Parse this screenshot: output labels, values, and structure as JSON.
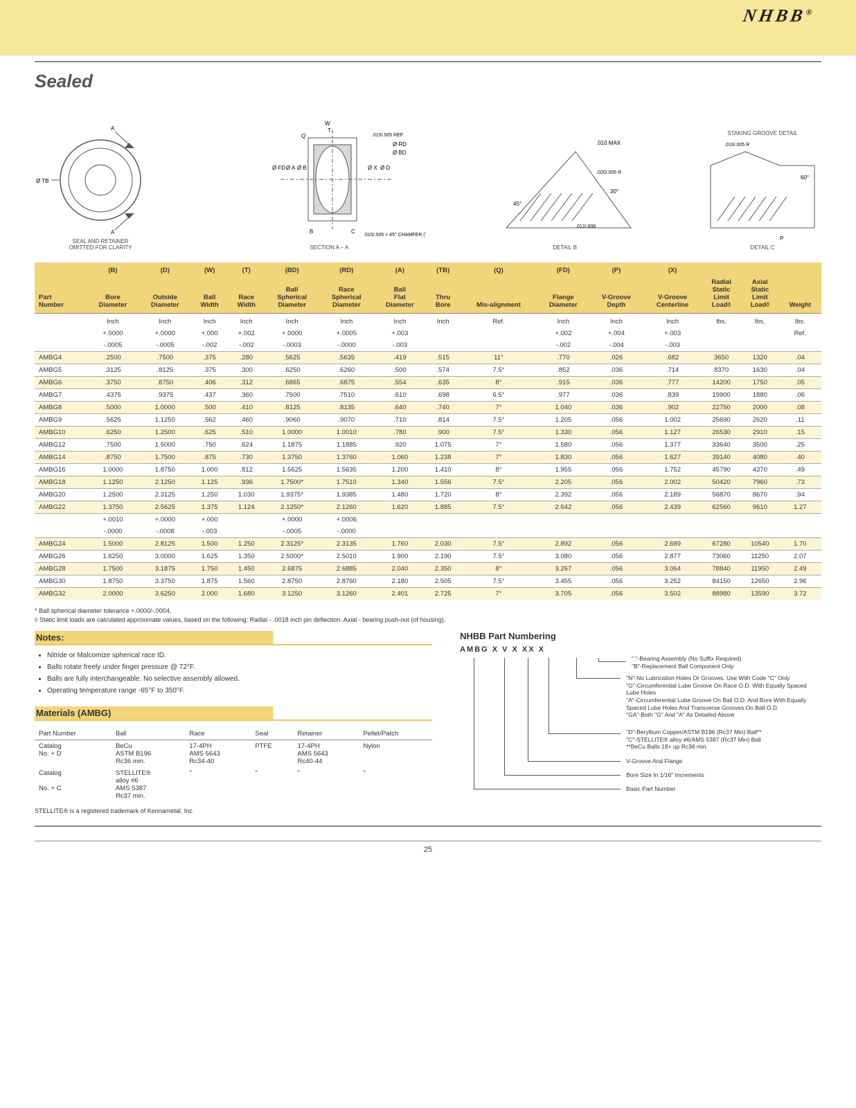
{
  "brand": "NHBB",
  "page_title": "Sealed",
  "page_number": "25",
  "diagrams": {
    "d1_label": "SEAL AND RETAINER\nOMITTED FOR CLARITY",
    "d1_anno": [
      "Ø TB",
      "A",
      "A"
    ],
    "d2_label": "SECTION A – A",
    "d2_anno": [
      "Ø FD",
      "Ø A",
      "Ø B",
      "W",
      "T",
      "Q",
      "C",
      "B",
      "C",
      "Ø X",
      "Ø D",
      ".015/.005 REF",
      ".015/.005 × 45° CHAMFER (TYP.)",
      "Ø RD",
      "Ø BD"
    ],
    "d3_label": "DETAIL B",
    "d3_anno": [
      ".010 MAX",
      "45°",
      "30°",
      ".020/.005 R",
      ".012/.008"
    ],
    "d4_label": "DETAIL C",
    "d4_title": "STAKING GROOVE DETAIL",
    "d4_anno": [
      ".010/.005 R",
      "60°",
      "P"
    ]
  },
  "table": {
    "header_codes": [
      "",
      "(B)",
      "(D)",
      "(W)",
      "(T)",
      "(BD)",
      "(RD)",
      "(A)",
      "(TB)",
      "(Q)",
      "(FD)",
      "(P)",
      "(X)",
      "",
      "",
      ""
    ],
    "header_names": [
      "Part Number",
      "Bore Diameter",
      "Outside Diameter",
      "Ball Width",
      "Race Width",
      "Ball Spherical Diameter",
      "Race Spherical Diameter",
      "Ball Flat Diameter",
      "Thru Bore",
      "Mis-alignment",
      "Flange Diameter",
      "V-Groove Depth",
      "V-Groove Centerline",
      "Radial Static Limit Load◊",
      "Axial Static Limit Load◊",
      "Weight"
    ],
    "unit_row": [
      "",
      "Inch",
      "Inch",
      "Inch",
      "Inch",
      "Inch",
      "Inch",
      "Inch",
      "Inch",
      "Ref.",
      "Inch",
      "Inch",
      "Inch",
      "lbs.",
      "lbs.",
      "lbs."
    ],
    "tol_row1": [
      "",
      "+.0000",
      "+.0000",
      "+.000",
      "+.002",
      "+.0000",
      "+.0005",
      "+.003",
      "",
      "",
      "+.002",
      "+.004",
      "+.003",
      "",
      "",
      "Ref."
    ],
    "tol_row2": [
      "",
      "-.0005",
      "-.0005",
      "-.002",
      "-.002",
      "-.0003",
      "-.0000",
      "-.003",
      "",
      "",
      "-.002",
      "-.004",
      "-.003",
      "",
      "",
      ""
    ],
    "rows": [
      [
        "AMBG4",
        ".2500",
        ".7500",
        ".375",
        ".280",
        ".5625",
        ".5635",
        ".419",
        ".515",
        "11°",
        ".770",
        ".026",
        ".682",
        "3650",
        "1320",
        ".04"
      ],
      [
        "AMBG5",
        ".3125",
        ".8125",
        ".375",
        ".300",
        ".6250",
        ".6260",
        ".500",
        ".574",
        "7.5°",
        ".852",
        ".036",
        ".714",
        "8370",
        "1630",
        ".04"
      ],
      [
        "AMBG6",
        ".3750",
        ".8750",
        ".406",
        ".312",
        ".6865",
        ".6875",
        ".554",
        ".635",
        "8°",
        ".915",
        ".036",
        ".777",
        "14200",
        "1750",
        ".05"
      ],
      [
        "AMBG7",
        ".4375",
        ".9375",
        ".437",
        ".360",
        ".7500",
        ".7510",
        ".610",
        ".698",
        "6.5°",
        ".977",
        ".036",
        ".839",
        "19900",
        "1880",
        ".06"
      ],
      [
        "AMBG8",
        ".5000",
        "1.0000",
        ".500",
        ".410",
        ".8125",
        ".8135",
        ".640",
        ".740",
        "7°",
        "1.040",
        ".036",
        ".902",
        "22750",
        "2000",
        ".08"
      ],
      [
        "AMBG9",
        ".5625",
        "1.1250",
        ".562",
        ".460",
        ".9060",
        ".9070",
        ".710",
        ".814",
        "7.5°",
        "1.205",
        ".056",
        "1.002",
        "25690",
        "2620",
        ".11"
      ],
      [
        "AMBG10",
        ".6250",
        "1.2500",
        ".625",
        ".510",
        "1.0000",
        "1.0010",
        ".780",
        ".900",
        "7.5°",
        "1.330",
        ".056",
        "1.127",
        "26530",
        "2910",
        ".15"
      ],
      [
        "AMBG12",
        ".7500",
        "1.5000",
        ".750",
        ".624",
        "1.1875",
        "1.1885",
        ".920",
        "1.075",
        "7°",
        "1.580",
        ".056",
        "1.377",
        "33640",
        "3500",
        ".25"
      ],
      [
        "AMBG14",
        ".8750",
        "1.7500",
        ".875",
        ".730",
        "1.3750",
        "1.3760",
        "1.060",
        "1.238",
        "7°",
        "1.830",
        ".056",
        "1.627",
        "39140",
        "4080",
        ".40"
      ],
      [
        "AMBG16",
        "1.0000",
        "1.8750",
        "1.000",
        ".812",
        "1.5625",
        "1.5635",
        "1.200",
        "1.410",
        "8°",
        "1.955",
        ".056",
        "1.752",
        "45790",
        "4370",
        ".49"
      ],
      [
        "AMBG18",
        "1.1250",
        "2.1250",
        "1.125",
        ".936",
        "1.7500*",
        "1.7510",
        "1.340",
        "1.556",
        "7.5°",
        "2.205",
        ".056",
        "2.002",
        "50420",
        "7960",
        ".73"
      ],
      [
        "AMBG20",
        "1.2500",
        "2.3125",
        "1.250",
        "1.030",
        "1.9375*",
        "1.9385",
        "1.480",
        "1.720",
        "8°",
        "2.392",
        ".056",
        "2.189",
        "56870",
        "8670",
        ".94"
      ],
      [
        "AMBG22",
        "1.3750",
        "2.5625",
        "1.375",
        "1.124",
        "2.1250*",
        "2.1260",
        "1.620",
        "1.885",
        "7.5°",
        "2.642",
        ".056",
        "2.439",
        "62560",
        "9610",
        "1.27"
      ]
    ],
    "mid_tol1": [
      "",
      "+.0010",
      "+.0000",
      "+.000",
      "",
      "+.0000",
      "+.0006",
      "",
      "",
      "",
      "",
      "",
      "",
      "",
      "",
      ""
    ],
    "mid_tol2": [
      "",
      "-.0000",
      "-.0008",
      "-.003",
      "",
      "-.0005",
      "-.0000",
      "",
      "",
      "",
      "",
      "",
      "",
      "",
      "",
      ""
    ],
    "rows2": [
      [
        "AMBG24",
        "1.5000",
        "2.8125",
        "1.500",
        "1.250",
        "2.3125*",
        "2.3135",
        "1.760",
        "2.030",
        "7.5°",
        "2.892",
        ".056",
        "2.689",
        "67280",
        "10540",
        "1.70"
      ],
      [
        "AMBG26",
        "1.6250",
        "3.0000",
        "1.625",
        "1.350",
        "2.5000*",
        "2.5010",
        "1.900",
        "2.190",
        "7.5°",
        "3.080",
        ".056",
        "2.877",
        "73060",
        "11250",
        "2.07"
      ],
      [
        "AMBG28",
        "1.7500",
        "3.1875",
        "1.750",
        "1.450",
        "2.6875",
        "2.6885",
        "2.040",
        "2.350",
        "8°",
        "3.267",
        ".056",
        "3.064",
        "78840",
        "11950",
        "2.49"
      ],
      [
        "AMBG30",
        "1.8750",
        "3.3750",
        "1.875",
        "1.560",
        "2.8750",
        "2.8760",
        "2.180",
        "2.505",
        "7.5°",
        "3.455",
        ".056",
        "3.252",
        "84150",
        "12650",
        "2.96"
      ],
      [
        "AMBG32",
        "2.0000",
        "3.6250",
        "2.000",
        "1.680",
        "3.1250",
        "3.1260",
        "2.401",
        "2.725",
        "7°",
        "3.705",
        ".056",
        "3.502",
        "88980",
        "13590",
        "3.72"
      ]
    ]
  },
  "footnotes": [
    "*  Ball spherical diameter tolerance +.0000/-.0004.",
    "◊  Static limit loads are calculated approximate values, based on the following: Radial - .0018 inch pin deflection.  Axial - bearing push-out (of housing)."
  ],
  "notes_header": "Notes:",
  "notes": [
    "Nitride or Malcomize spherical race ID.",
    "Balls rotate freely under finger pressure @ 72°F.",
    "Balls are fully interchangeable. No selective assembly allowed.",
    "Operating temperature range -65°F to 350°F."
  ],
  "materials_header": "Materials (AMBG)",
  "materials": {
    "columns": [
      "Part Number",
      "Ball",
      "Race",
      "Seal",
      "Retainer",
      "Pellet/Patch"
    ],
    "rows": [
      [
        "Catalog\nNo. + D",
        "BeCu\nASTM B196\nRc36 min.",
        "17-4PH\nAMS 5643\nRc34-40",
        "PTFE",
        "17-4PH\nAMS 5643\nRc40-44",
        "Nylon"
      ],
      [
        "Catalog\n\nNo. + C",
        "STELLITE®\nalloy #6\nAMS 5387\nRc37 min.",
        "\"",
        "\"",
        "\"",
        "\""
      ]
    ],
    "trademark": "STELLITE® is a registered trademark of Kennametal, Inc."
  },
  "part_numbering": {
    "title": "NHBB Part Numbering",
    "pattern": "AMBG  X    V    X    XX    X",
    "items": [
      "\" \"-Bearing Assembly (No Suffix Required)\n\"B\"-Replacement Ball Component Only",
      "\"N\"-No Lubrication Holes Or Grooves. Use With Code \"C\" Only\n\"G\"-Circumferential Lube Groove On Race O.D. With Equally Spaced Lube Holes\n\"A\"-Circumferential Lube Groove On Ball O.D. And Bore With Equally Spaced Lube Holes And Transverse Grooves On Ball O.D.\n\"GA\"-Both \"G\" And \"A\" As Detailed Above",
      "\"D\"-Beryllium Copper/ASTM B196 (Rc37 Min) Ball**\n\"C\"-STELLITE® alloy #6/AMS 5387 (Rc37 Min) Ball\n                                      **BeCu Balls 18+ up Rc36 min.",
      "V-Groove And Flange",
      "Bore Size In 1/16\" Increments",
      "Basic Part Number"
    ]
  }
}
